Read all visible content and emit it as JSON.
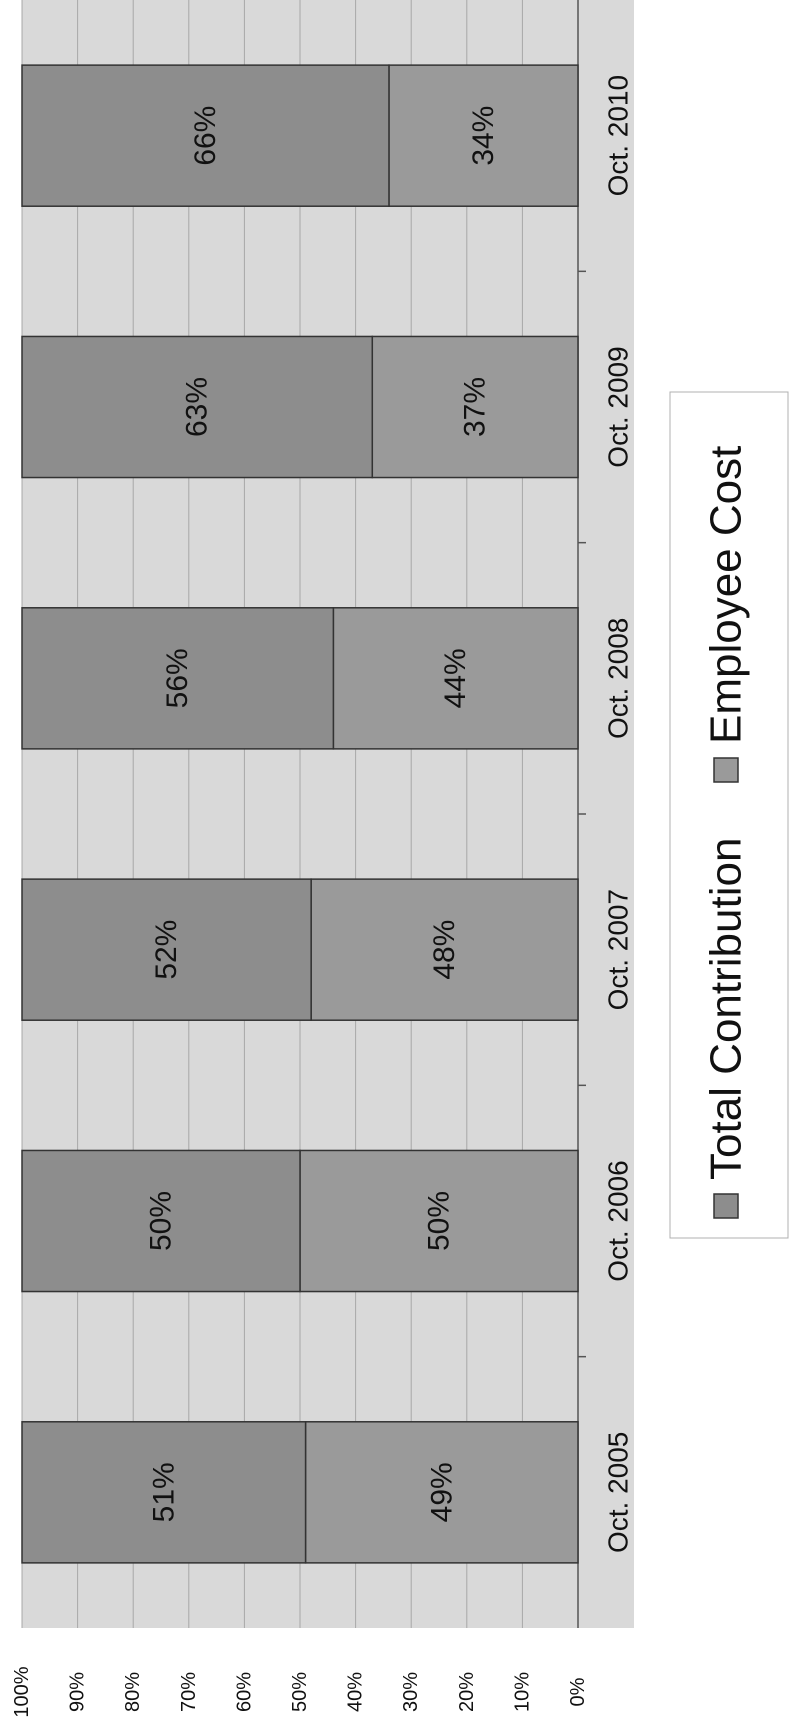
{
  "chart_data": {
    "type": "bar",
    "stacked": true,
    "percent_stacked": true,
    "orientation": "horizontal",
    "rotated_page": true,
    "categories": [
      "Oct. 2005",
      "Oct. 2006",
      "Oct. 2007",
      "Oct. 2008",
      "Oct. 2009",
      "Oct. 2010"
    ],
    "series": [
      {
        "name": "Employee Cost",
        "values": [
          49,
          50,
          48,
          44,
          37,
          34
        ],
        "labels": [
          "49%",
          "50%",
          "48%",
          "44%",
          "37%",
          "34%"
        ],
        "color": "#9a9a9a"
      },
      {
        "name": "Total Contribution",
        "values": [
          51,
          50,
          52,
          56,
          63,
          66
        ],
        "labels": [
          "51%",
          "50%",
          "52%",
          "56%",
          "63%",
          "66%"
        ],
        "color": "#8d8d8d"
      }
    ],
    "value_axis": {
      "range": [
        0,
        100
      ],
      "ticks": [
        0,
        10,
        20,
        30,
        40,
        50,
        60,
        70,
        80,
        90,
        100
      ],
      "tick_labels": [
        "0%",
        "10%",
        "20%",
        "30%",
        "40%",
        "50%",
        "60%",
        "70%",
        "80%",
        "90%",
        "100%"
      ]
    },
    "grid": true,
    "legend": {
      "placement": "bottom",
      "entries": [
        "Total Contribution",
        "Employee Cost"
      ]
    }
  },
  "colors": {
    "plot_background": "#d9d9d9",
    "gridline": "#a8a8a8",
    "bar_border": "#333333"
  }
}
